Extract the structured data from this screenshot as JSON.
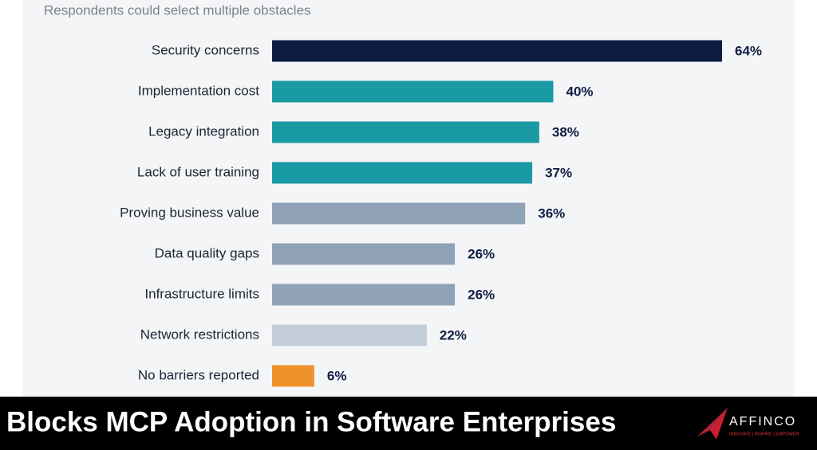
{
  "chart_data": {
    "type": "bar",
    "orientation": "horizontal",
    "subtitle": "Respondents could select multiple obstacles",
    "categories": [
      "Security concerns",
      "Implementation cost",
      "Legacy integration",
      "Lack of user training",
      "Proving business value",
      "Data quality gaps",
      "Infrastructure limits",
      "Network restrictions",
      "No barriers reported"
    ],
    "values": [
      64,
      40,
      38,
      37,
      36,
      26,
      26,
      22,
      6
    ],
    "value_labels": [
      "64%",
      "40%",
      "38%",
      "37%",
      "36%",
      "26%",
      "26%",
      "22%",
      "6%"
    ],
    "colors": [
      "#0f1d43",
      "#1a9aa5",
      "#1a9aa5",
      "#1a9aa5",
      "#8fa2b7",
      "#8fa2b7",
      "#8fa2b7",
      "#c2cdd8",
      "#f0922c"
    ]
  },
  "banner": {
    "title": "Blocks MCP Adoption in Software Enterprises",
    "logo": "AFFINCO",
    "tagline": "INNOVATE | INSPIRE | EMPOWER"
  }
}
